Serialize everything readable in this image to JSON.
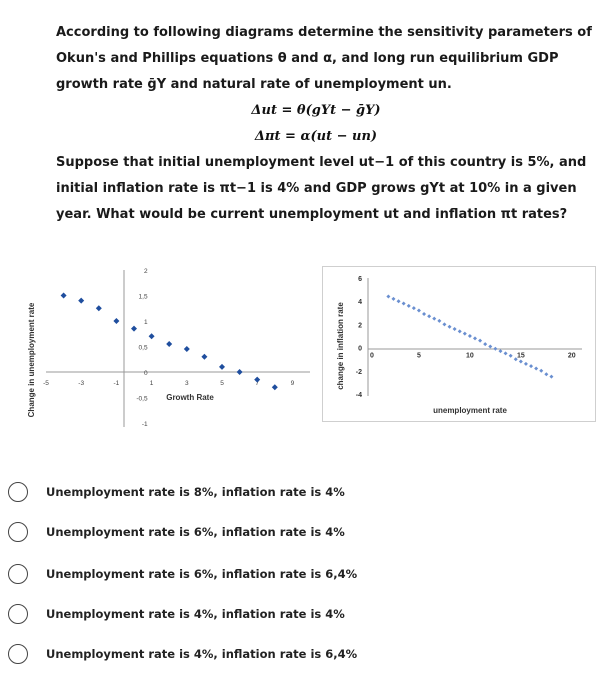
{
  "question": {
    "line1": "According to following diagrams determine the sensitivity parameters of",
    "line2": "Okun's and Phillips equations θ and α, and long run equilibrium GDP",
    "line3": "growth rate ḡY and natural rate of unemployment un.",
    "eq1": "Δut = θ(gYt − ḡY)",
    "eq2": "Δπt = α(ut − un)",
    "line4": "Suppose that initial unemployment level ut−1 of this country is 5%, and",
    "line5": "initial inflation rate is πt−1 is 4% and GDP grows gYt at 10% in a given",
    "line6": "year. What would be current unemployment ut and inflation πt rates?"
  },
  "chart_data": [
    {
      "type": "scatter",
      "xlabel": "Growth Rate",
      "ylabel": "Change in unemployment rate",
      "x_ticks": [
        "-5",
        "-3",
        "-1",
        "1",
        "3",
        "5",
        "7",
        "9"
      ],
      "y_ticks": [
        "2",
        "1,5",
        "1",
        "0,5",
        "0",
        "-0,5",
        "-1"
      ],
      "x": [
        -4,
        -3,
        -2,
        -1,
        0,
        1,
        2,
        3,
        4,
        5,
        6,
        7,
        8
      ],
      "y": [
        1.5,
        1.4,
        1.25,
        1.0,
        0.85,
        0.7,
        0.55,
        0.45,
        0.3,
        0.1,
        0.0,
        -0.15,
        -0.3
      ],
      "xlim": [
        -5,
        10
      ],
      "ylim": [
        -1,
        2
      ],
      "marker_color": "#1f4e9e"
    },
    {
      "type": "scatter",
      "xlabel": "unemployment rate",
      "ylabel": "change in inflation rate",
      "x_ticks": [
        "0",
        "5",
        "10",
        "15",
        "20"
      ],
      "y_ticks": [
        "6",
        "4",
        "2",
        "0",
        "-2",
        "-4"
      ],
      "x": [
        2,
        2.5,
        3,
        3.5,
        4,
        4.5,
        5,
        5.5,
        6,
        6.5,
        7,
        7.5,
        8,
        8.5,
        9,
        9.5,
        10,
        10.5,
        11,
        11.5,
        12,
        12.5,
        13,
        13.5,
        14,
        14.5,
        15,
        15.5,
        16,
        16.5,
        17,
        17.5,
        18
      ],
      "y": [
        4.4,
        4.2,
        4.0,
        3.8,
        3.6,
        3.4,
        3.2,
        2.9,
        2.7,
        2.5,
        2.3,
        2.0,
        1.8,
        1.6,
        1.4,
        1.2,
        1.0,
        0.8,
        0.6,
        0.3,
        0.1,
        -0.1,
        -0.3,
        -0.5,
        -0.7,
        -1.0,
        -1.2,
        -1.4,
        -1.6,
        -1.8,
        -2.0,
        -2.3,
        -2.5
      ],
      "xlim": [
        0,
        21
      ],
      "ylim": [
        -4,
        6
      ],
      "marker_color": "#6a8fd0"
    }
  ],
  "options": [
    "Unemployment rate is 8%, inflation rate is 4%",
    "Unemployment rate is 6%, inflation rate is 4%",
    "Unemployment rate is 6%, inflation rate is 6,4%",
    "Unemployment rate is 4%, inflation rate is 4%",
    "Unemployment rate is 4%, inflation rate is 6,4%"
  ]
}
